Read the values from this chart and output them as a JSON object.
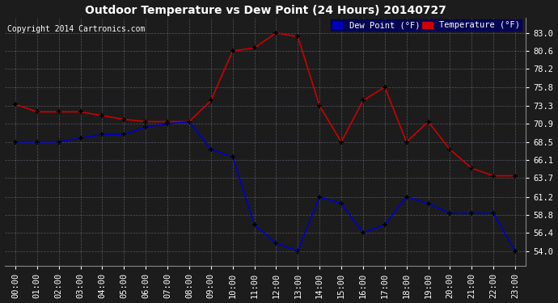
{
  "title": "Outdoor Temperature vs Dew Point (24 Hours) 20140727",
  "copyright": "Copyright 2014 Cartronics.com",
  "legend_dew": "Dew Point (°F)",
  "legend_temp": "Temperature (°F)",
  "hours": [
    "00:00",
    "01:00",
    "02:00",
    "03:00",
    "04:00",
    "05:00",
    "06:00",
    "07:00",
    "08:00",
    "09:00",
    "10:00",
    "11:00",
    "12:00",
    "13:00",
    "14:00",
    "15:00",
    "16:00",
    "17:00",
    "18:00",
    "19:00",
    "20:00",
    "21:00",
    "22:00",
    "23:00"
  ],
  "temperature": [
    73.5,
    72.5,
    72.5,
    72.5,
    72.0,
    71.5,
    71.2,
    71.2,
    71.2,
    74.0,
    80.6,
    81.0,
    83.0,
    82.5,
    73.3,
    68.5,
    74.0,
    75.8,
    68.5,
    71.2,
    67.5,
    65.0,
    64.0,
    64.0
  ],
  "dew_point": [
    68.5,
    68.5,
    68.5,
    69.0,
    69.5,
    69.5,
    70.5,
    70.9,
    71.2,
    67.5,
    66.5,
    57.5,
    55.0,
    54.0,
    61.2,
    60.3,
    56.4,
    57.5,
    61.2,
    60.3,
    59.0,
    59.0,
    59.0,
    54.0
  ],
  "ylim": [
    52.0,
    85.0
  ],
  "yticks": [
    54.0,
    56.4,
    58.8,
    61.2,
    63.7,
    66.1,
    68.5,
    70.9,
    73.3,
    75.8,
    78.2,
    80.6,
    83.0
  ],
  "temp_color": "#cc0000",
  "dew_color": "#0000cc",
  "plot_bg_color": "#1a1a2e",
  "fig_bg_color": "#1a1a2e",
  "grid_color": "#555577",
  "title_color": "#ffffff",
  "tick_color": "#ffffff",
  "marker": "+"
}
